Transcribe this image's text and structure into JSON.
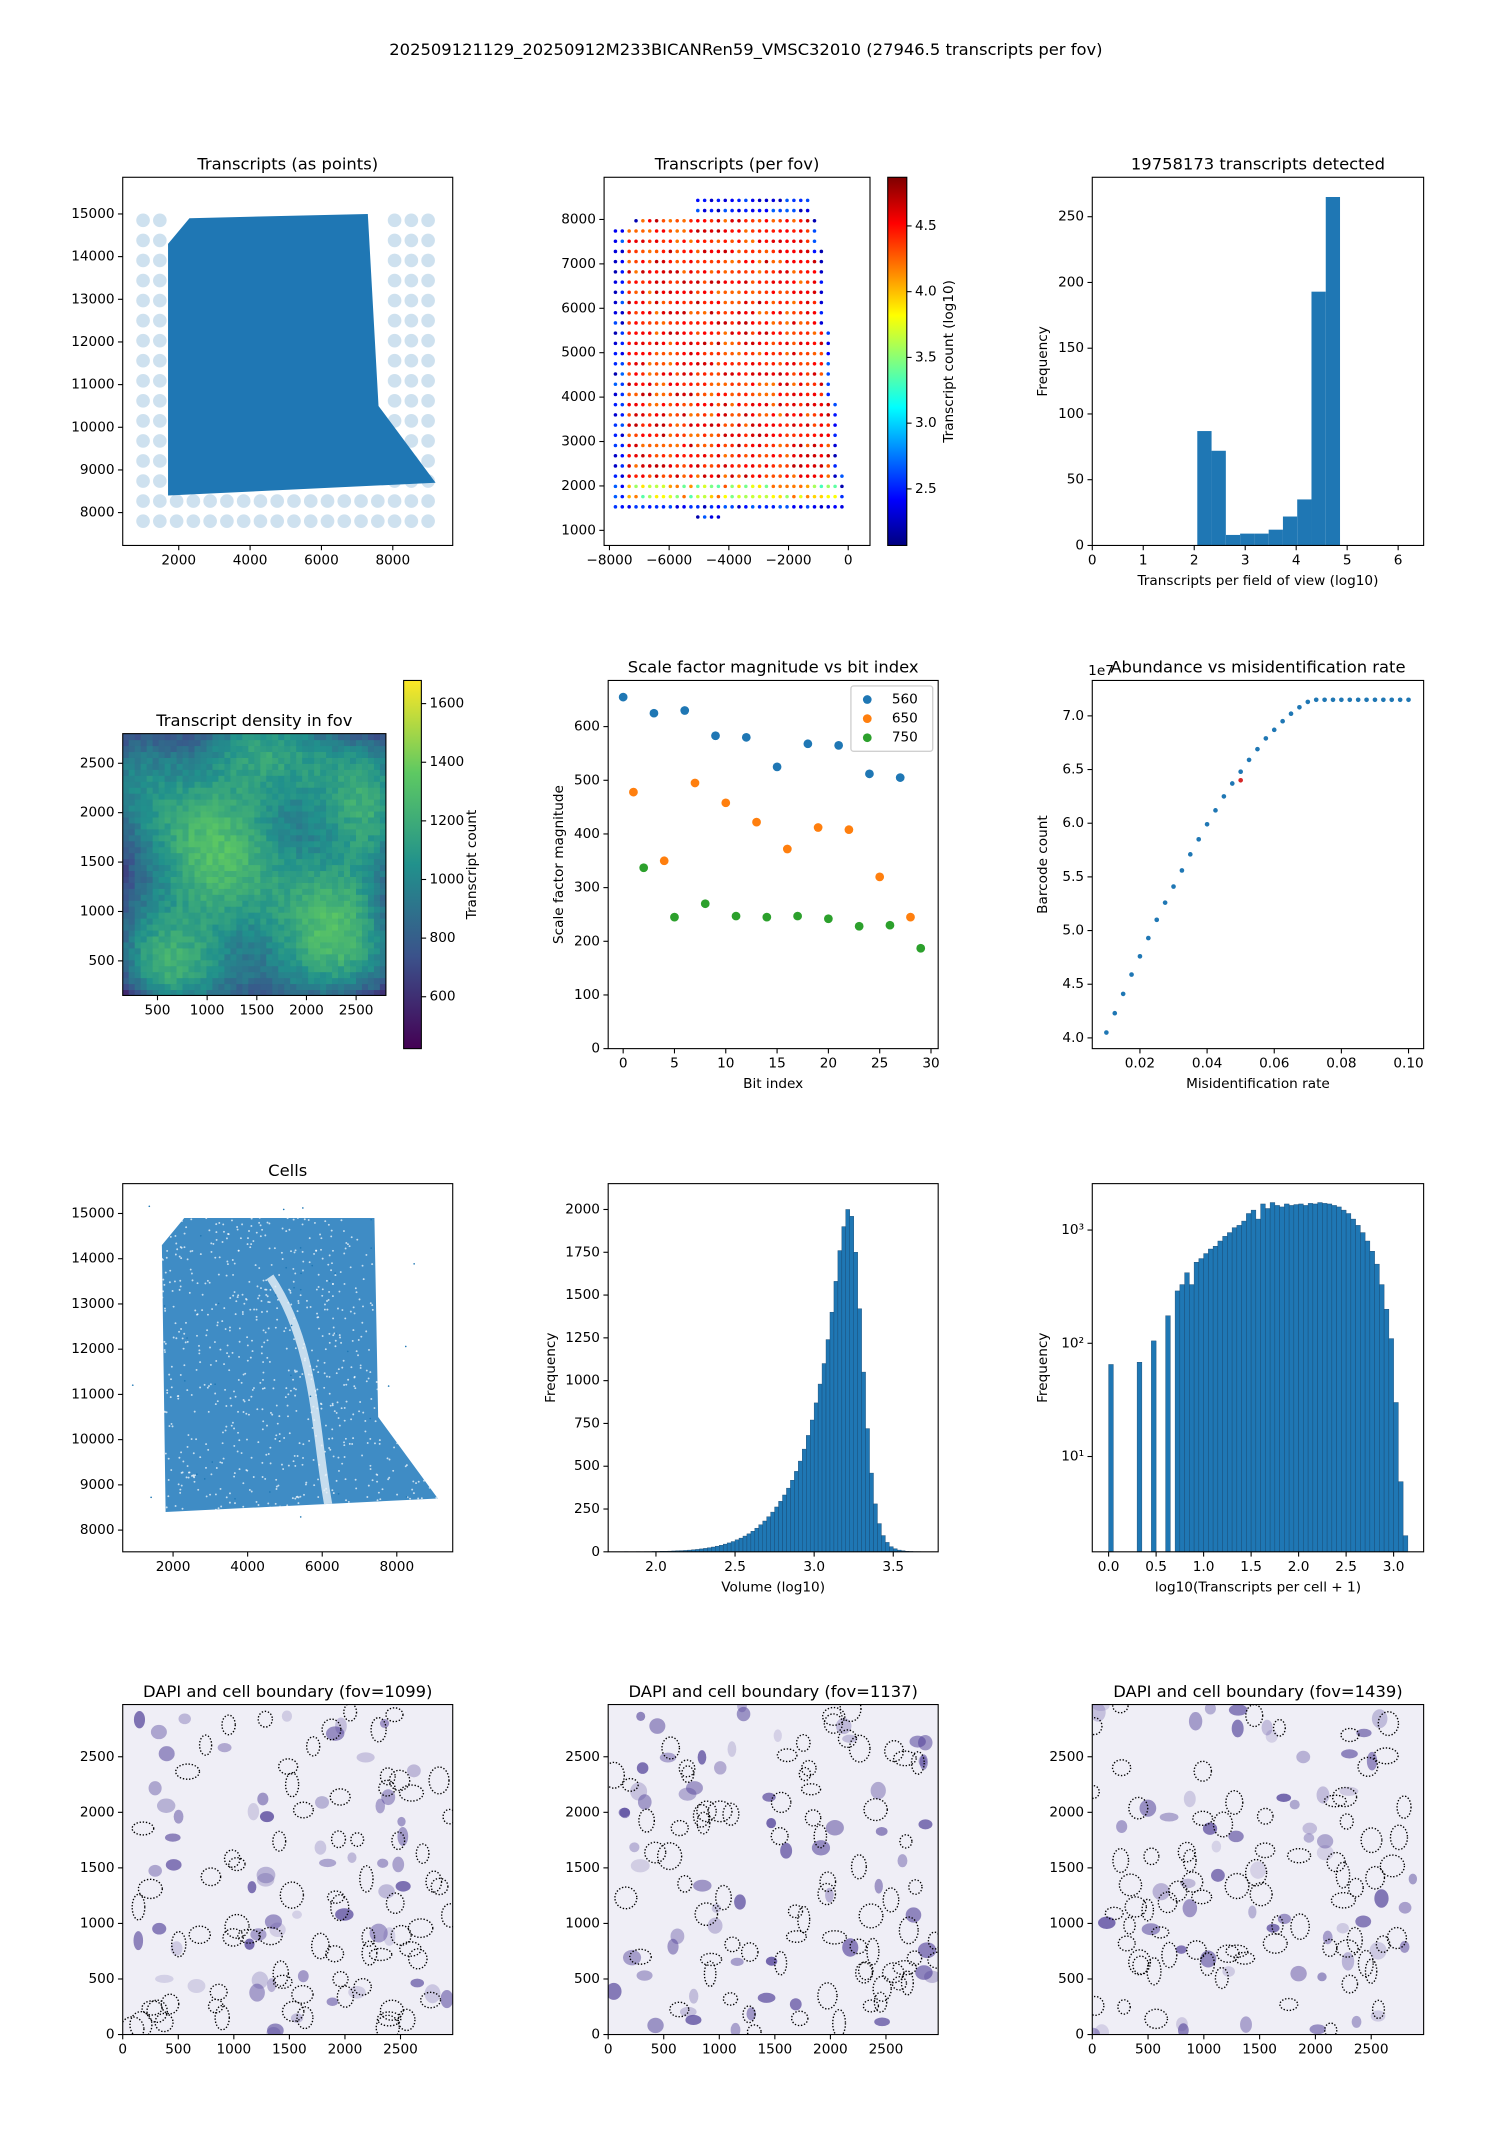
{
  "title": "202509121129_20250912M233BICANRen59_VMSC32010 (27946.5 transcripts per fov)",
  "chart_data": [
    {
      "type": "image",
      "title": "Transcripts (as points)",
      "xlim": [
        430,
        9680
      ],
      "ylim": [
        7230,
        15860
      ],
      "xticks": [
        2000,
        4000,
        6000,
        8000
      ],
      "yticks": [
        8000,
        9000,
        10000,
        11000,
        12000,
        13000,
        14000,
        15000
      ]
    },
    {
      "type": "image",
      "title": "Transcripts (per fov)",
      "xlim": [
        -8180,
        730
      ],
      "ylim": [
        660,
        8950
      ],
      "xticks": [
        {
          "value": -8000,
          "label": "−8000"
        },
        {
          "value": -6000,
          "label": "−6000"
        },
        {
          "value": -4000,
          "label": "−4000"
        },
        {
          "value": -2000,
          "label": "−2000"
        },
        0
      ],
      "yticks": [
        1000,
        2000,
        3000,
        4000,
        5000,
        6000,
        7000,
        8000
      ],
      "colormap": "jet",
      "clim": [
        2.07,
        4.87
      ],
      "cticks": [
        2.5,
        {
          "value": 3,
          "label": "3.0"
        },
        3.5,
        {
          "value": 4,
          "label": "4.0"
        },
        4.5
      ],
      "colorbar_label": "Transcript count (log10)"
    },
    {
      "type": "histogram",
      "title": "19758173 transcripts detected",
      "xlabel": "Transcripts per field of view (log10)",
      "ylabel": "Frequency",
      "bins": [
        2.06,
        2.34,
        2.62,
        2.9,
        3.18,
        3.46,
        3.74,
        4.02,
        4.3,
        4.58,
        4.86
      ],
      "values": [
        87,
        72,
        8,
        9,
        9,
        12,
        22,
        35,
        193,
        265
      ],
      "color": "#1f77b4",
      "xlim": [
        0,
        6.5
      ],
      "xticks": [
        0,
        1,
        2,
        3,
        4,
        5,
        6
      ],
      "ylim": [
        0,
        280
      ],
      "yticks": [
        0,
        50,
        100,
        150,
        200,
        250
      ]
    },
    {
      "type": "heatmap",
      "title": "Transcript density in fov",
      "xlim": [
        150,
        2800
      ],
      "ylim": [
        150,
        2800
      ],
      "xticks": [
        500,
        1000,
        1500,
        2000,
        2500
      ],
      "yticks": [
        500,
        1000,
        1500,
        2000,
        2500
      ],
      "colormap": "viridis",
      "clim": [
        423,
        1679
      ],
      "cticks": [
        600,
        800,
        1000,
        1200,
        1400,
        1600
      ],
      "colorbar_label": "Transcript count"
    },
    {
      "type": "scatter",
      "title": "Scale factor magnitude vs bit index",
      "xlabel": "Bit index",
      "ylabel": "Scale factor magnitude",
      "xlim": [
        -1.46,
        30.7
      ],
      "xticks": [
        0,
        5,
        10,
        15,
        20,
        25,
        30
      ],
      "ylim": [
        0,
        686
      ],
      "yticks": [
        0,
        100,
        200,
        300,
        400,
        500,
        600
      ],
      "legend": "upper right",
      "series": [
        {
          "name": "560",
          "color": "#1f77b4",
          "x": [
            0,
            3,
            6,
            9,
            12,
            15,
            18,
            21,
            24,
            27
          ],
          "values": [
            655,
            625,
            630,
            583,
            580,
            525,
            568,
            565,
            512,
            505
          ]
        },
        {
          "name": "650",
          "color": "#ff7f0e",
          "x": [
            1,
            4,
            7,
            10,
            13,
            16,
            19,
            22,
            25,
            28
          ],
          "values": [
            478,
            350,
            495,
            458,
            422,
            372,
            412,
            408,
            320,
            245
          ]
        },
        {
          "name": "750",
          "color": "#2ca02c",
          "x": [
            2,
            5,
            8,
            11,
            14,
            17,
            20,
            23,
            26,
            29
          ],
          "values": [
            337,
            245,
            270,
            247,
            245,
            247,
            242,
            228,
            230,
            187
          ]
        }
      ]
    },
    {
      "type": "scatter",
      "title": "Abundance vs misidentification rate",
      "xlabel": "Misidentification rate",
      "ylabel": "Barcode count",
      "y_offset_label": "1e7",
      "xlim": [
        0.0058,
        0.1045
      ],
      "xticks": [
        0.02,
        0.04,
        0.06,
        0.08,
        {
          "value": 0.1,
          "label": "0.10"
        }
      ],
      "ylim": [
        3.9,
        7.33
      ],
      "yticks": [
        {
          "value": 4,
          "label": "4.0"
        },
        4.5,
        {
          "value": 5,
          "label": "5.0"
        },
        5.5,
        {
          "value": 6,
          "label": "6.0"
        },
        6.5,
        {
          "value": 7,
          "label": "7.0"
        }
      ],
      "series": [
        {
          "color": "#1f77b4",
          "x": [
            0.01,
            0.0125,
            0.015,
            0.0175,
            0.02,
            0.0225,
            0.025,
            0.0275,
            0.03,
            0.0325,
            0.035,
            0.0375,
            0.04,
            0.0425,
            0.045,
            0.0475,
            0.05,
            0.0525,
            0.055,
            0.0575,
            0.06,
            0.0625,
            0.065,
            0.0675,
            0.07,
            0.0725,
            0.075,
            0.0775,
            0.08,
            0.0825,
            0.085,
            0.0875,
            0.09,
            0.0925,
            0.095,
            0.0975,
            0.1
          ],
          "values": [
            4.05,
            4.23,
            4.41,
            4.59,
            4.76,
            4.93,
            5.1,
            5.26,
            5.41,
            5.56,
            5.71,
            5.85,
            5.99,
            6.12,
            6.25,
            6.37,
            6.48,
            6.59,
            6.69,
            6.79,
            6.87,
            6.95,
            7.02,
            7.08,
            7.13,
            7.15,
            7.15,
            7.15,
            7.15,
            7.15,
            7.15,
            7.15,
            7.15,
            7.15,
            7.15,
            7.15,
            7.15
          ]
        },
        {
          "color": "#d62728",
          "x": [
            0.05
          ],
          "values": [
            6.4
          ]
        }
      ]
    },
    {
      "type": "image",
      "title": "Cells",
      "xlim": [
        650,
        9500
      ],
      "ylim": [
        7520,
        15660
      ],
      "xticks": [
        2000,
        4000,
        6000,
        8000
      ],
      "yticks": [
        8000,
        9000,
        10000,
        11000,
        12000,
        13000,
        14000,
        15000
      ]
    },
    {
      "type": "histogram",
      "xlabel": "Volume (log10)",
      "ylabel": "Frequency",
      "color": "#1f77b4",
      "edgecolor": "#17466e",
      "bins": [
        1.8,
        1.825,
        1.85,
        1.875,
        1.9,
        1.925,
        1.95,
        1.975,
        2.0,
        2.025,
        2.05,
        2.075,
        2.1,
        2.125,
        2.15,
        2.175,
        2.2,
        2.225,
        2.25,
        2.275,
        2.3,
        2.325,
        2.35,
        2.375,
        2.4,
        2.425,
        2.45,
        2.475,
        2.5,
        2.525,
        2.55,
        2.575,
        2.6,
        2.625,
        2.65,
        2.675,
        2.7,
        2.725,
        2.75,
        2.775,
        2.8,
        2.825,
        2.85,
        2.875,
        2.9,
        2.925,
        2.95,
        2.975,
        3.0,
        3.025,
        3.05,
        3.075,
        3.1,
        3.125,
        3.15,
        3.175,
        3.2,
        3.225,
        3.25,
        3.275,
        3.3,
        3.325,
        3.35,
        3.375,
        3.4,
        3.425,
        3.45,
        3.475,
        3.5,
        3.525,
        3.55,
        3.575,
        3.6,
        3.625,
        3.65,
        3.675,
        3.7
      ],
      "values": [
        1,
        0,
        0,
        1,
        0,
        1,
        1,
        2,
        2,
        3,
        3,
        4,
        5,
        6,
        7,
        8,
        10,
        12,
        14,
        17,
        20,
        24,
        28,
        33,
        38,
        45,
        52,
        60,
        70,
        80,
        92,
        105,
        120,
        138,
        158,
        180,
        205,
        232,
        262,
        295,
        332,
        372,
        418,
        470,
        530,
        600,
        680,
        770,
        870,
        980,
        1100,
        1240,
        1400,
        1580,
        1760,
        1900,
        2000,
        1960,
        1750,
        1420,
        1050,
        720,
        460,
        280,
        165,
        95,
        55,
        30,
        18,
        10,
        6,
        3,
        2,
        1,
        1,
        0
      ],
      "xlim": [
        1.698,
        3.784
      ],
      "xticks": [
        {
          "value": 2,
          "label": "2.0"
        },
        2.5,
        {
          "value": 3,
          "label": "3.0"
        },
        3.5
      ],
      "ylim": [
        0,
        2151
      ],
      "yticks": [
        0,
        250,
        500,
        750,
        1000,
        1250,
        1500,
        1750,
        2000
      ]
    },
    {
      "type": "histogram",
      "xlabel": "log10(Transcripts per cell + 1)",
      "ylabel": "Frequency",
      "color": "#1f77b4",
      "edgecolor": "#17466e",
      "yscale": "log",
      "bins": [
        0,
        0.05,
        0.1,
        0.15,
        0.2,
        0.25,
        0.3,
        0.35,
        0.4,
        0.45,
        0.5,
        0.55,
        0.6,
        0.65,
        0.7,
        0.75,
        0.8,
        0.85,
        0.9,
        0.95,
        1.0,
        1.05,
        1.1,
        1.15,
        1.2,
        1.25,
        1.3,
        1.35,
        1.4,
        1.45,
        1.5,
        1.55,
        1.6,
        1.65,
        1.7,
        1.75,
        1.8,
        1.85,
        1.9,
        1.95,
        2.0,
        2.05,
        2.1,
        2.15,
        2.2,
        2.25,
        2.3,
        2.35,
        2.4,
        2.45,
        2.5,
        2.55,
        2.6,
        2.65,
        2.7,
        2.75,
        2.8,
        2.85,
        2.9,
        2.95,
        3.0,
        3.05,
        3.1,
        3.15
      ],
      "values": [
        65,
        0,
        0,
        0,
        0,
        0,
        68,
        0,
        0,
        105,
        0,
        0,
        175,
        0,
        290,
        330,
        420,
        330,
        520,
        560,
        620,
        680,
        720,
        800,
        880,
        950,
        1050,
        1100,
        1200,
        1400,
        1500,
        1250,
        1700,
        1550,
        1750,
        1650,
        1600,
        1700,
        1650,
        1680,
        1700,
        1650,
        1720,
        1700,
        1750,
        1720,
        1700,
        1650,
        1600,
        1500,
        1400,
        1250,
        1100,
        950,
        800,
        650,
        500,
        330,
        200,
        110,
        30,
        6,
        2
      ],
      "xlim": [
        -0.172,
        3.316
      ],
      "xticks": [
        {
          "value": 0,
          "label": "0.0"
        },
        0.5,
        {
          "value": 1,
          "label": "1.0"
        },
        1.5,
        {
          "value": 2,
          "label": "2.0"
        },
        2.5,
        {
          "value": 3,
          "label": "3.0"
        }
      ],
      "ylim": [
        1.44,
        2570
      ],
      "yticks": [
        {
          "value": 10,
          "label": "10¹"
        },
        {
          "value": 100,
          "label": "10²"
        },
        {
          "value": 1000,
          "label": "10³"
        }
      ]
    },
    {
      "type": "image",
      "title": "DAPI and cell boundary (fov=1099)",
      "xlim": [
        0,
        2970
      ],
      "ylim": [
        0,
        2970
      ],
      "xticks": [
        0,
        500,
        1000,
        1500,
        2000,
        2500
      ],
      "yticks": [
        0,
        500,
        1000,
        1500,
        2000,
        2500
      ]
    },
    {
      "type": "image",
      "title": "DAPI and cell boundary (fov=1137)",
      "xlim": [
        0,
        2970
      ],
      "ylim": [
        0,
        2970
      ],
      "xticks": [
        0,
        500,
        1000,
        1500,
        2000,
        2500
      ],
      "yticks": [
        0,
        500,
        1000,
        1500,
        2000,
        2500
      ]
    },
    {
      "type": "image",
      "title": "DAPI and cell boundary (fov=1439)",
      "xlim": [
        0,
        2970
      ],
      "ylim": [
        0,
        2970
      ],
      "xticks": [
        0,
        500,
        1000,
        1500,
        2000,
        2500
      ],
      "yticks": [
        0,
        500,
        1000,
        1500,
        2000,
        2500
      ]
    }
  ]
}
